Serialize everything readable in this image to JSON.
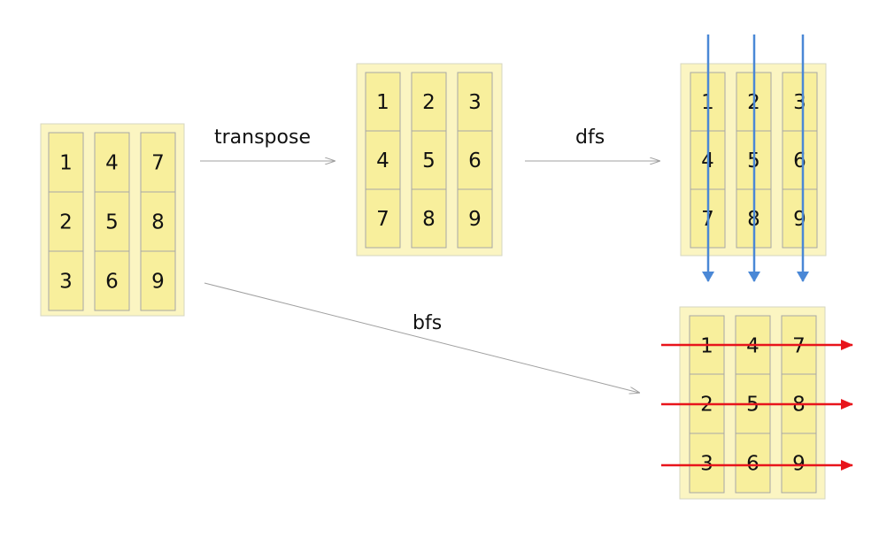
{
  "labels": {
    "transpose": "transpose",
    "dfs": "dfs",
    "bfs": "bfs"
  },
  "colors": {
    "outer_fill": "#fbf5c2",
    "outer_stroke": "#d6d6c0",
    "cell_fill": "#f8ef9c",
    "cell_stroke": "#a7a7a7",
    "arrow_gray": "#a0a0a0",
    "arrow_blue": "#4a88d6",
    "arrow_red": "#e8141b",
    "text": "#111111"
  },
  "grids": [
    {
      "id": "original",
      "columns": [
        [
          "1",
          "2",
          "3"
        ],
        [
          "4",
          "5",
          "6"
        ],
        [
          "7",
          "8",
          "9"
        ]
      ]
    },
    {
      "id": "transposed",
      "columns": [
        [
          "1",
          "4",
          "7"
        ],
        [
          "2",
          "5",
          "8"
        ],
        [
          "3",
          "6",
          "9"
        ]
      ]
    },
    {
      "id": "dfs-result",
      "columns": [
        [
          "1",
          "4",
          "7"
        ],
        [
          "2",
          "5",
          "8"
        ],
        [
          "3",
          "6",
          "9"
        ]
      ]
    },
    {
      "id": "bfs-result",
      "columns": [
        [
          "1",
          "2",
          "3"
        ],
        [
          "4",
          "5",
          "6"
        ],
        [
          "7",
          "8",
          "9"
        ]
      ]
    }
  ]
}
